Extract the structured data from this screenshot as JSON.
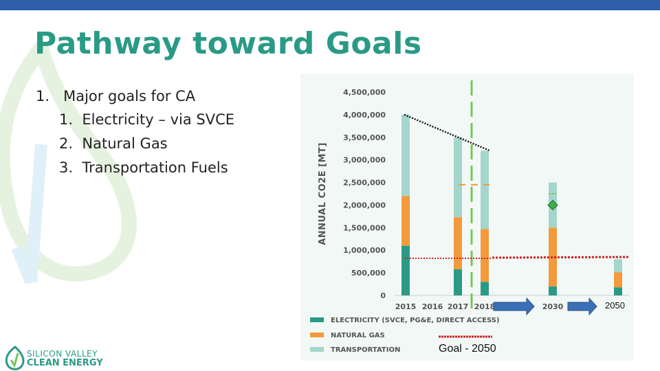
{
  "slide": {
    "title": "Pathway toward Goals",
    "goals_heading_number": "1.",
    "goals_heading": "Major goals for CA",
    "goals": [
      {
        "num": "1.",
        "text": "Electricity – via SVCE"
      },
      {
        "num": "2.",
        "text": "Natural Gas"
      },
      {
        "num": "3.",
        "text": "Transportation Fuels"
      }
    ],
    "logo_line1": "SILICON VALLEY",
    "logo_line2": "CLEAN ENERGY",
    "goal_caption": "Goal - 2050",
    "label_2050": "2050"
  },
  "colors": {
    "electricity": "#2a9a86",
    "natural_gas": "#f29a3c",
    "transportation": "#a5d5cc",
    "goal_line": "#cc2222",
    "divider": "#79c35a",
    "arrow": "#3a6fb6",
    "title": "#2a9a86"
  },
  "chart_data": {
    "type": "bar",
    "stacked": true,
    "ylabel": "ANNUAL CO2E [MT]",
    "ylim": [
      0,
      4500000
    ],
    "yticks": [
      "4,500,000",
      "4,000,000",
      "3,500,000",
      "3,000,000",
      "2,500,000",
      "2,000,000",
      "1,500,000",
      "1,000,000",
      "500,000",
      "0"
    ],
    "categories": [
      "2015",
      "2016",
      "2017",
      "2018",
      "2030",
      "2050"
    ],
    "series": [
      {
        "name": "ELECTRICITY (SVCE, PG&E, DIRECT ACCESS)",
        "values": [
          1100000,
          0,
          580000,
          300000,
          200000,
          180000
        ]
      },
      {
        "name": "NATURAL GAS",
        "values": [
          1100000,
          0,
          1150000,
          1170000,
          1300000,
          330000
        ]
      },
      {
        "name": "TRANSPORTATION",
        "values": [
          1800000,
          0,
          1770000,
          1730000,
          1000000,
          290000
        ]
      }
    ],
    "annotations": {
      "trend_line": [
        {
          "x": "2015",
          "y": 4000000
        },
        {
          "x": "2018",
          "y": 3200000
        }
      ],
      "goal_2050": 820000,
      "marker_2030": 2000000,
      "dash_2017_2018": 2450000,
      "dash_2030": 2250000
    }
  }
}
